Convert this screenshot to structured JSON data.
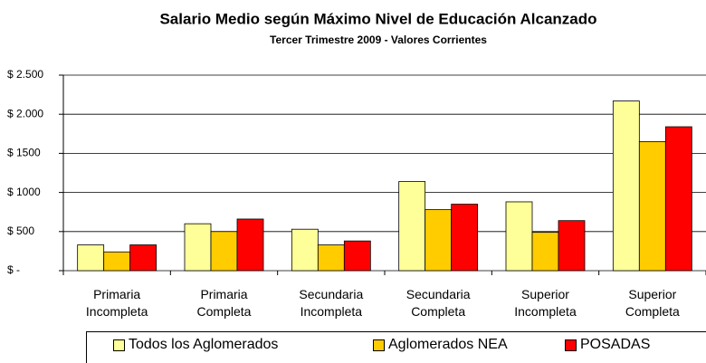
{
  "chart_data": {
    "type": "bar",
    "title": "Salario Medio según Máximo Nivel de Educación Alcanzado",
    "subtitle": "Tercer Trimestre 2009 - Valores Corrientes",
    "categories": [
      "Primaria Incompleta",
      "Primaria Completa",
      "Secundaria Incompleta",
      "Secundaria Completa",
      "Superior Incompleta",
      "Superior Completa"
    ],
    "series": [
      {
        "name": "Todos los Aglomerados",
        "color": "#ffff99",
        "values": [
          330,
          600,
          530,
          1140,
          880,
          2170
        ]
      },
      {
        "name": "Aglomerados NEA",
        "color": "#ffcc00",
        "values": [
          240,
          500,
          330,
          780,
          490,
          1650
        ]
      },
      {
        "name": "POSADAS",
        "color": "#ff0000",
        "values": [
          330,
          660,
          380,
          850,
          640,
          1840
        ]
      }
    ],
    "ylim": [
      0,
      2500
    ],
    "yticks": [
      {
        "value": 0,
        "label": "$ -"
      },
      {
        "value": 500,
        "label": "$ 500"
      },
      {
        "value": 1000,
        "label": "$ 1000"
      },
      {
        "value": 1500,
        "label": "$ 1500"
      },
      {
        "value": 2000,
        "label": "$ 2.000"
      },
      {
        "value": 2500,
        "label": "$ 2.500"
      }
    ],
    "grid": true,
    "legend": "bottom"
  }
}
